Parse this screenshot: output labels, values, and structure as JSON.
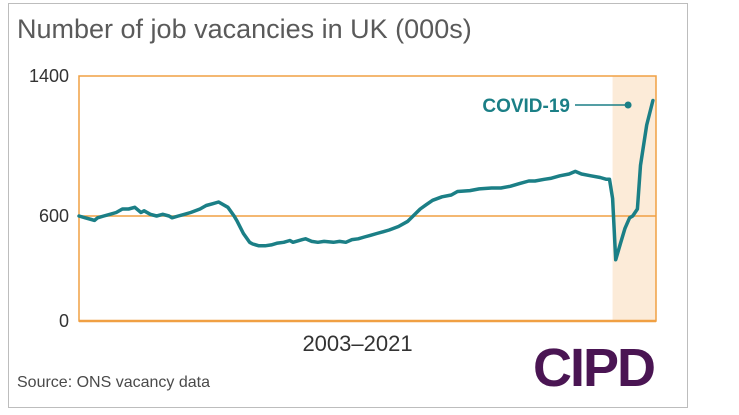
{
  "title": "Number of job vacancies in UK (000s)",
  "source": "Source: ONS vacancy data",
  "logo_text": "CIPD",
  "colors": {
    "line": "#1b7f86",
    "axis": "#f0a043",
    "shade": "#fcebd8",
    "logo": "#4a1553"
  },
  "chart_data": {
    "type": "line",
    "title": "Number of job vacancies in UK (000s)",
    "xlabel": "2003–2021",
    "ylabel": "",
    "ylim": [
      0,
      1400
    ],
    "yticks": [
      0,
      600,
      1400
    ],
    "xlim": [
      2003,
      2021.6
    ],
    "grid": "horizontal line at 600",
    "shaded_region": {
      "from": 2020.2,
      "to": 2021.6,
      "label": "COVID-19"
    },
    "annotation": "COVID-19",
    "series": [
      {
        "x": [
          2003.0,
          2003.2,
          2003.4,
          2003.5,
          2003.6,
          2003.8,
          2004.0,
          2004.2,
          2004.4,
          2004.6,
          2004.8,
          2005.0,
          2005.1,
          2005.3,
          2005.5,
          2005.7,
          2005.9,
          2006.0,
          2006.2,
          2006.4,
          2006.6,
          2006.9,
          2007.1,
          2007.3,
          2007.5,
          2007.8,
          2008.0,
          2008.1,
          2008.3,
          2008.5,
          2008.6,
          2008.8,
          2009.0,
          2009.2,
          2009.4,
          2009.6,
          2009.8,
          2009.9,
          2010.2,
          2010.3,
          2010.5,
          2010.7,
          2010.9,
          2011.2,
          2011.4,
          2011.6,
          2011.8,
          2012.0,
          2012.2,
          2012.4,
          2012.6,
          2012.8,
          2013.0,
          2013.3,
          2013.6,
          2014.0,
          2014.2,
          2014.4,
          2014.7,
          2015.0,
          2015.2,
          2015.6,
          2015.9,
          2016.3,
          2016.6,
          2016.9,
          2017.2,
          2017.5,
          2017.7,
          2018.0,
          2018.2,
          2018.5,
          2018.8,
          2019.0,
          2019.2,
          2019.5,
          2019.8,
          2020.0,
          2020.1,
          2020.2,
          2020.3,
          2020.45,
          2020.6,
          2020.75,
          2020.85,
          2021.0,
          2021.1,
          2021.3,
          2021.5
        ],
        "y": [
          600,
          590,
          580,
          575,
          590,
          600,
          610,
          620,
          640,
          640,
          650,
          620,
          630,
          610,
          600,
          610,
          600,
          590,
          600,
          610,
          620,
          640,
          660,
          670,
          680,
          650,
          600,
          570,
          500,
          450,
          440,
          430,
          430,
          435,
          445,
          450,
          460,
          450,
          465,
          470,
          455,
          450,
          455,
          450,
          455,
          450,
          465,
          470,
          480,
          490,
          500,
          510,
          520,
          540,
          570,
          640,
          665,
          690,
          710,
          720,
          740,
          745,
          755,
          760,
          760,
          770,
          785,
          800,
          800,
          810,
          815,
          830,
          840,
          855,
          840,
          830,
          820,
          810,
          810,
          700,
          350,
          440,
          530,
          590,
          600,
          640,
          890,
          1120,
          1260
        ]
      }
    ]
  }
}
